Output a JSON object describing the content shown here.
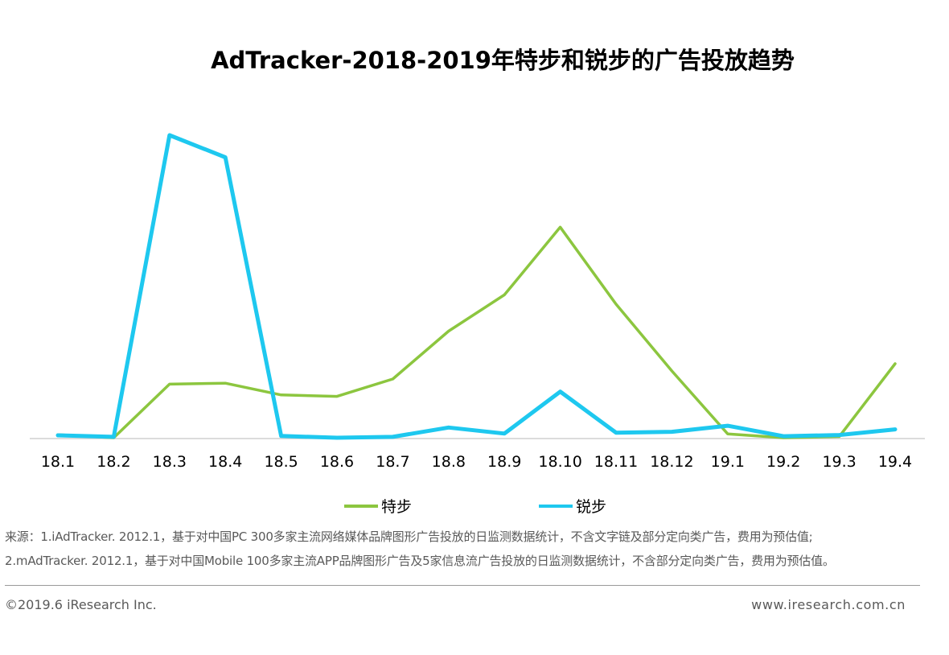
{
  "chart_data": {
    "type": "line",
    "title": "AdTracker-2018-2019年特步和锐步的广告投放趋势",
    "categories": [
      "18.1",
      "18.2",
      "18.3",
      "18.4",
      "18.5",
      "18.6",
      "18.7",
      "18.8",
      "18.9",
      "18.10",
      "18.11",
      "18.12",
      "19.1",
      "19.2",
      "19.3",
      "19.4"
    ],
    "series": [
      {
        "name": "特步",
        "color": "#8cc63f",
        "values": [
          1.0,
          0.0,
          17.9,
          18.2,
          14.3,
          13.8,
          19.6,
          35.6,
          47.7,
          70.3,
          44.6,
          22.3,
          1.3,
          0.0,
          0.4,
          24.7
        ]
      },
      {
        "name": "锐步",
        "color": "#1ec8ef",
        "values": [
          0.8,
          0.3,
          101.0,
          93.6,
          0.6,
          0.0,
          0.3,
          3.4,
          1.4,
          15.4,
          1.7,
          2.0,
          4.0,
          0.5,
          0.9,
          2.8
        ]
      }
    ],
    "ylim": [
      0,
      105
    ],
    "xlabel": "",
    "ylabel": "",
    "grid": false,
    "legend": "bottom-center"
  },
  "notes": {
    "line1": "来源：1.iAdTracker. 2012.1，基于对中国PC 300多家主流网络媒体品牌图形广告投放的日监测数据统计，不含文字链及部分定向类广告，费用为预估值;",
    "line2": "2.mAdTracker. 2012.1，基于对中国Mobile 100多家主流APP品牌图形广告及5家信息流广告投放的日监测数据统计，不含部分定向类广告，费用为预估值。"
  },
  "footer": {
    "copyright": "©2019.6 iResearch Inc.",
    "website": "www.iresearch.com.cn"
  }
}
